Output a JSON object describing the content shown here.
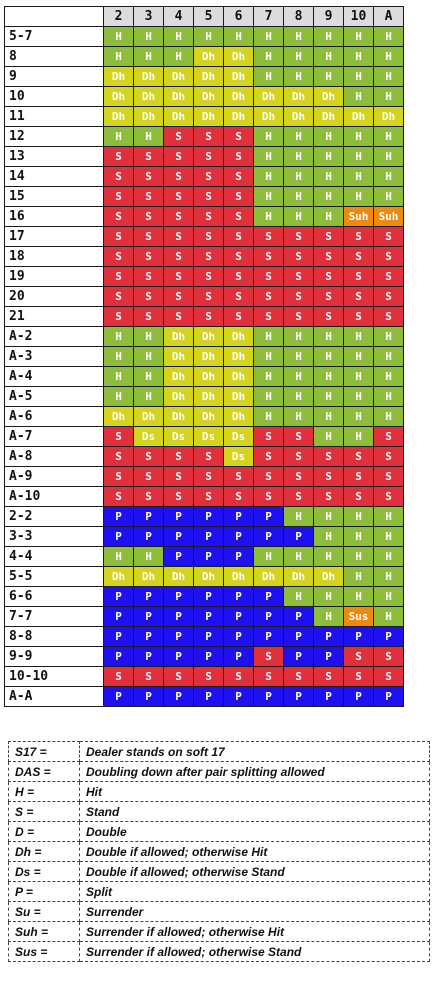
{
  "colors": {
    "H": "#8dbd3b",
    "S": "#e0303c",
    "Dh": "#d4d41e",
    "Ds": "#d4d41e",
    "P": "#1e10f0",
    "Suh": "#ef8a10",
    "Sus": "#ef8a10"
  },
  "dealer_cards": [
    "2",
    "3",
    "4",
    "5",
    "6",
    "7",
    "8",
    "9",
    "10",
    "A"
  ],
  "rows": [
    {
      "hand": "5-7",
      "actions": [
        "H",
        "H",
        "H",
        "H",
        "H",
        "H",
        "H",
        "H",
        "H",
        "H"
      ]
    },
    {
      "hand": "8",
      "actions": [
        "H",
        "H",
        "H",
        "Dh",
        "Dh",
        "H",
        "H",
        "H",
        "H",
        "H"
      ]
    },
    {
      "hand": "9",
      "actions": [
        "Dh",
        "Dh",
        "Dh",
        "Dh",
        "Dh",
        "H",
        "H",
        "H",
        "H",
        "H"
      ]
    },
    {
      "hand": "10",
      "actions": [
        "Dh",
        "Dh",
        "Dh",
        "Dh",
        "Dh",
        "Dh",
        "Dh",
        "Dh",
        "H",
        "H"
      ]
    },
    {
      "hand": "11",
      "actions": [
        "Dh",
        "Dh",
        "Dh",
        "Dh",
        "Dh",
        "Dh",
        "Dh",
        "Dh",
        "Dh",
        "Dh"
      ]
    },
    {
      "hand": "12",
      "actions": [
        "H",
        "H",
        "S",
        "S",
        "S",
        "H",
        "H",
        "H",
        "H",
        "H"
      ]
    },
    {
      "hand": "13",
      "actions": [
        "S",
        "S",
        "S",
        "S",
        "S",
        "H",
        "H",
        "H",
        "H",
        "H"
      ]
    },
    {
      "hand": "14",
      "actions": [
        "S",
        "S",
        "S",
        "S",
        "S",
        "H",
        "H",
        "H",
        "H",
        "H"
      ]
    },
    {
      "hand": "15",
      "actions": [
        "S",
        "S",
        "S",
        "S",
        "S",
        "H",
        "H",
        "H",
        "H",
        "H"
      ]
    },
    {
      "hand": "16",
      "actions": [
        "S",
        "S",
        "S",
        "S",
        "S",
        "H",
        "H",
        "H",
        "Suh",
        "Suh"
      ]
    },
    {
      "hand": "17",
      "actions": [
        "S",
        "S",
        "S",
        "S",
        "S",
        "S",
        "S",
        "S",
        "S",
        "S"
      ]
    },
    {
      "hand": "18",
      "actions": [
        "S",
        "S",
        "S",
        "S",
        "S",
        "S",
        "S",
        "S",
        "S",
        "S"
      ]
    },
    {
      "hand": "19",
      "actions": [
        "S",
        "S",
        "S",
        "S",
        "S",
        "S",
        "S",
        "S",
        "S",
        "S"
      ]
    },
    {
      "hand": "20",
      "actions": [
        "S",
        "S",
        "S",
        "S",
        "S",
        "S",
        "S",
        "S",
        "S",
        "S"
      ]
    },
    {
      "hand": "21",
      "actions": [
        "S",
        "S",
        "S",
        "S",
        "S",
        "S",
        "S",
        "S",
        "S",
        "S"
      ]
    },
    {
      "hand": "A-2",
      "actions": [
        "H",
        "H",
        "Dh",
        "Dh",
        "Dh",
        "H",
        "H",
        "H",
        "H",
        "H"
      ]
    },
    {
      "hand": "A-3",
      "actions": [
        "H",
        "H",
        "Dh",
        "Dh",
        "Dh",
        "H",
        "H",
        "H",
        "H",
        "H"
      ]
    },
    {
      "hand": "A-4",
      "actions": [
        "H",
        "H",
        "Dh",
        "Dh",
        "Dh",
        "H",
        "H",
        "H",
        "H",
        "H"
      ]
    },
    {
      "hand": "A-5",
      "actions": [
        "H",
        "H",
        "Dh",
        "Dh",
        "Dh",
        "H",
        "H",
        "H",
        "H",
        "H"
      ]
    },
    {
      "hand": "A-6",
      "actions": [
        "Dh",
        "Dh",
        "Dh",
        "Dh",
        "Dh",
        "H",
        "H",
        "H",
        "H",
        "H"
      ]
    },
    {
      "hand": "A-7",
      "actions": [
        "S",
        "Ds",
        "Ds",
        "Ds",
        "Ds",
        "S",
        "S",
        "H",
        "H",
        "S"
      ]
    },
    {
      "hand": "A-8",
      "actions": [
        "S",
        "S",
        "S",
        "S",
        "Ds",
        "S",
        "S",
        "S",
        "S",
        "S"
      ]
    },
    {
      "hand": "A-9",
      "actions": [
        "S",
        "S",
        "S",
        "S",
        "S",
        "S",
        "S",
        "S",
        "S",
        "S"
      ]
    },
    {
      "hand": "A-10",
      "actions": [
        "S",
        "S",
        "S",
        "S",
        "S",
        "S",
        "S",
        "S",
        "S",
        "S"
      ]
    },
    {
      "hand": "2-2",
      "actions": [
        "P",
        "P",
        "P",
        "P",
        "P",
        "P",
        "H",
        "H",
        "H",
        "H"
      ]
    },
    {
      "hand": "3-3",
      "actions": [
        "P",
        "P",
        "P",
        "P",
        "P",
        "P",
        "P",
        "H",
        "H",
        "H"
      ]
    },
    {
      "hand": "4-4",
      "actions": [
        "H",
        "H",
        "P",
        "P",
        "P",
        "H",
        "H",
        "H",
        "H",
        "H"
      ]
    },
    {
      "hand": "5-5",
      "actions": [
        "Dh",
        "Dh",
        "Dh",
        "Dh",
        "Dh",
        "Dh",
        "Dh",
        "Dh",
        "H",
        "H"
      ]
    },
    {
      "hand": "6-6",
      "actions": [
        "P",
        "P",
        "P",
        "P",
        "P",
        "P",
        "H",
        "H",
        "H",
        "H"
      ]
    },
    {
      "hand": "7-7",
      "actions": [
        "P",
        "P",
        "P",
        "P",
        "P",
        "P",
        "P",
        "H",
        "Sus",
        "H"
      ]
    },
    {
      "hand": "8-8",
      "actions": [
        "P",
        "P",
        "P",
        "P",
        "P",
        "P",
        "P",
        "P",
        "P",
        "P"
      ]
    },
    {
      "hand": "9-9",
      "actions": [
        "P",
        "P",
        "P",
        "P",
        "P",
        "S",
        "P",
        "P",
        "S",
        "S"
      ]
    },
    {
      "hand": "10-10",
      "actions": [
        "S",
        "S",
        "S",
        "S",
        "S",
        "S",
        "S",
        "S",
        "S",
        "S"
      ]
    },
    {
      "hand": "A-A",
      "actions": [
        "P",
        "P",
        "P",
        "P",
        "P",
        "P",
        "P",
        "P",
        "P",
        "P"
      ]
    }
  ],
  "legend": [
    {
      "key": "S17 =",
      "desc": "Dealer stands on soft 17"
    },
    {
      "key": "DAS =",
      "desc": "Doubling down after pair splitting allowed"
    },
    {
      "key": "H =",
      "desc": "Hit"
    },
    {
      "key": "S =",
      "desc": "Stand"
    },
    {
      "key": "D =",
      "desc": "Double"
    },
    {
      "key": "Dh =",
      "desc": "Double if allowed; otherwise Hit"
    },
    {
      "key": "Ds =",
      "desc": "Double if allowed; otherwise Stand"
    },
    {
      "key": "P =",
      "desc": "Split"
    },
    {
      "key": "Su =",
      "desc": "Surrender"
    },
    {
      "key": "Suh =",
      "desc": "Surrender if allowed; otherwise Hit"
    },
    {
      "key": "Sus =",
      "desc": "Surrender if allowed; otherwise Stand"
    }
  ]
}
